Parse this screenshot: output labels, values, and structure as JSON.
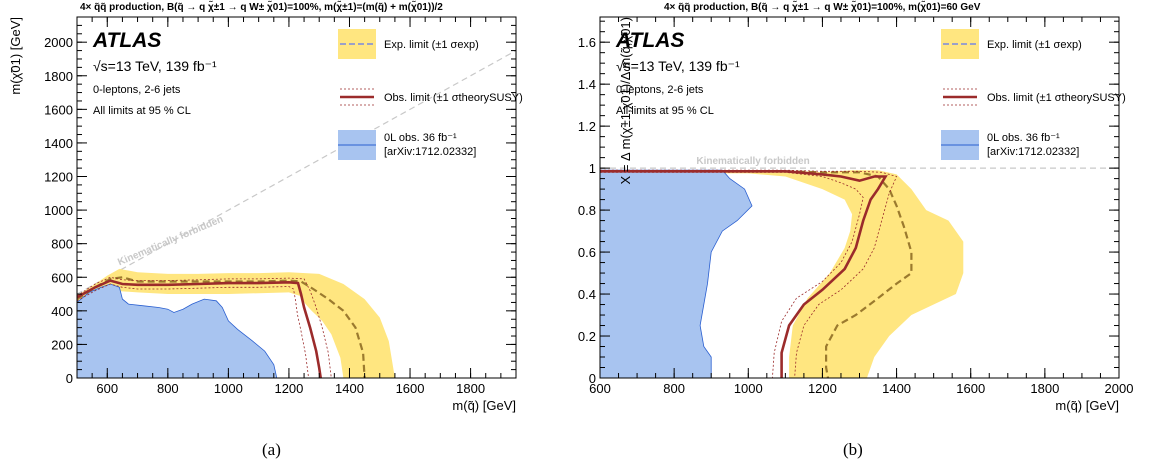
{
  "chart_data": [
    {
      "type": "area",
      "panel_label": "(a)",
      "title": "4× q̃q̃ production, B(q̃ → q χ̃±1 → q W± χ̃01)=100%, m(χ̃±1)=(m(q̃) + m(χ̃01))/2",
      "xlabel": "m(q̃) [GeV]",
      "ylabel": "m(χ̃01) [GeV]",
      "xlim": [
        500,
        1950
      ],
      "ylim": [
        0,
        2150
      ],
      "xticks": [
        "600",
        "800",
        "1000",
        "1200",
        "1400",
        "1600",
        "1800"
      ],
      "yticks": [
        "0",
        "200",
        "400",
        "600",
        "800",
        "1000",
        "1200",
        "1400",
        "1600",
        "1800",
        "2000"
      ],
      "atlas_label": "ATLAS",
      "info_lines": [
        "√s=13 TeV, 139 fb⁻¹",
        "0-leptons, 2-6 jets",
        "All limits at 95 % CL"
      ],
      "forbidden_label": "Kinematically forbidden",
      "legend": {
        "placement": "top-right",
        "exp": "Exp. limit (±1 σexp)",
        "obs": "Obs. limit (±1 σtheorySUSY)",
        "prev_line1": "0L obs. 36 fb⁻¹",
        "prev_line2": "[arXiv:1712.02332]"
      },
      "diagonal": [
        [
          500,
          500
        ],
        [
          1950,
          1950
        ]
      ],
      "prev_obs_region": [
        [
          500,
          0
        ],
        [
          500,
          450
        ],
        [
          540,
          510
        ],
        [
          580,
          540
        ],
        [
          610,
          560
        ],
        [
          640,
          540
        ],
        [
          650,
          470
        ],
        [
          670,
          440
        ],
        [
          720,
          430
        ],
        [
          770,
          420
        ],
        [
          800,
          410
        ],
        [
          820,
          390
        ],
        [
          850,
          410
        ],
        [
          880,
          440
        ],
        [
          920,
          470
        ],
        [
          960,
          460
        ],
        [
          980,
          420
        ],
        [
          1000,
          340
        ],
        [
          1030,
          290
        ],
        [
          1080,
          220
        ],
        [
          1120,
          160
        ],
        [
          1150,
          80
        ],
        [
          1160,
          0
        ]
      ],
      "exp_band": [
        [
          500,
          490
        ],
        [
          560,
          560
        ],
        [
          600,
          610
        ],
        [
          640,
          650
        ],
        [
          700,
          630
        ],
        [
          800,
          620
        ],
        [
          900,
          620
        ],
        [
          1000,
          625
        ],
        [
          1100,
          625
        ],
        [
          1200,
          630
        ],
        [
          1300,
          620
        ],
        [
          1380,
          560
        ],
        [
          1450,
          470
        ],
        [
          1500,
          360
        ],
        [
          1530,
          220
        ],
        [
          1550,
          0
        ],
        [
          1380,
          0
        ],
        [
          1370,
          120
        ],
        [
          1340,
          260
        ],
        [
          1310,
          340
        ],
        [
          1275,
          400
        ],
        [
          1255,
          440
        ],
        [
          1235,
          490
        ],
        [
          1200,
          510
        ],
        [
          1100,
          505
        ],
        [
          1000,
          500
        ],
        [
          900,
          500
        ],
        [
          800,
          500
        ],
        [
          700,
          510
        ],
        [
          620,
          520
        ],
        [
          560,
          500
        ],
        [
          500,
          450
        ]
      ],
      "exp_limit": [
        [
          500,
          470
        ],
        [
          560,
          540
        ],
        [
          610,
          590
        ],
        [
          650,
          600
        ],
        [
          700,
          575
        ],
        [
          800,
          575
        ],
        [
          900,
          575
        ],
        [
          1000,
          575
        ],
        [
          1100,
          575
        ],
        [
          1200,
          580
        ],
        [
          1240,
          575
        ],
        [
          1280,
          530
        ],
        [
          1330,
          470
        ],
        [
          1380,
          400
        ],
        [
          1420,
          300
        ],
        [
          1445,
          150
        ],
        [
          1450,
          0
        ]
      ],
      "obs_limit": [
        [
          500,
          480
        ],
        [
          560,
          540
        ],
        [
          610,
          580
        ],
        [
          650,
          560
        ],
        [
          700,
          555
        ],
        [
          800,
          555
        ],
        [
          900,
          560
        ],
        [
          1000,
          565
        ],
        [
          1100,
          565
        ],
        [
          1200,
          570
        ],
        [
          1230,
          565
        ],
        [
          1240,
          500
        ],
        [
          1250,
          420
        ],
        [
          1270,
          300
        ],
        [
          1290,
          160
        ],
        [
          1300,
          60
        ],
        [
          1305,
          0
        ]
      ],
      "obs_up": [
        [
          500,
          490
        ],
        [
          560,
          560
        ],
        [
          610,
          600
        ],
        [
          650,
          585
        ],
        [
          700,
          580
        ],
        [
          800,
          580
        ],
        [
          900,
          585
        ],
        [
          1000,
          590
        ],
        [
          1100,
          590
        ],
        [
          1200,
          595
        ],
        [
          1250,
          590
        ],
        [
          1270,
          520
        ],
        [
          1290,
          420
        ],
        [
          1310,
          300
        ],
        [
          1330,
          150
        ],
        [
          1340,
          0
        ]
      ],
      "obs_down": [
        [
          500,
          460
        ],
        [
          560,
          520
        ],
        [
          610,
          560
        ],
        [
          650,
          540
        ],
        [
          700,
          530
        ],
        [
          800,
          530
        ],
        [
          900,
          535
        ],
        [
          1000,
          540
        ],
        [
          1100,
          540
        ],
        [
          1200,
          545
        ],
        [
          1215,
          530
        ],
        [
          1222,
          460
        ],
        [
          1228,
          380
        ],
        [
          1240,
          280
        ],
        [
          1255,
          140
        ],
        [
          1265,
          0
        ]
      ]
    },
    {
      "type": "area",
      "panel_label": "(b)",
      "title": "4× q̃q̃ production, B(q̃ → q χ̃±1 → q W± χ̃01)=100%, m(χ̃01)=60 GeV",
      "xlabel": "m(q̃) [GeV]",
      "ylabel": "X = Δ m(χ̃±1,χ̃01)/Δ m(q̃,χ̃01)",
      "xlim": [
        600,
        2000
      ],
      "ylim": [
        0,
        1.72
      ],
      "xticks": [
        "600",
        "800",
        "1000",
        "1200",
        "1400",
        "1600",
        "1800",
        "2000"
      ],
      "yticks": [
        "0",
        "0.2",
        "0.4",
        "0.6",
        "0.8",
        "1",
        "1.2",
        "1.4",
        "1.6"
      ],
      "atlas_label": "ATLAS",
      "info_lines": [
        "√s=13 TeV, 139 fb⁻¹",
        "0-leptons, 2-6 jets",
        "All limits at 95 % CL"
      ],
      "forbidden_label": "Kinematically forbidden",
      "legend": {
        "placement": "top-right",
        "exp": "Exp. limit (±1 σexp)",
        "obs": "Obs. limit (±1 σtheorySUSY)",
        "prev_line1": "0L obs. 36 fb⁻¹",
        "prev_line2": "[arXiv:1712.02332]"
      },
      "forbidden_line_y": 1.0,
      "prev_obs_region": [
        [
          600,
          0
        ],
        [
          600,
          0.99
        ],
        [
          700,
          0.99
        ],
        [
          800,
          0.99
        ],
        [
          930,
          0.99
        ],
        [
          950,
          0.95
        ],
        [
          990,
          0.9
        ],
        [
          1010,
          0.82
        ],
        [
          970,
          0.75
        ],
        [
          930,
          0.7
        ],
        [
          900,
          0.6
        ],
        [
          890,
          0.45
        ],
        [
          880,
          0.35
        ],
        [
          870,
          0.25
        ],
        [
          880,
          0.15
        ],
        [
          900,
          0.1
        ],
        [
          900,
          0
        ]
      ],
      "exp_band": [
        [
          600,
          0.985
        ],
        [
          800,
          0.985
        ],
        [
          1000,
          0.985
        ],
        [
          1100,
          0.99
        ],
        [
          1200,
          0.98
        ],
        [
          1280,
          0.99
        ],
        [
          1350,
          0.99
        ],
        [
          1400,
          0.97
        ],
        [
          1440,
          0.9
        ],
        [
          1480,
          0.8
        ],
        [
          1540,
          0.75
        ],
        [
          1580,
          0.65
        ],
        [
          1580,
          0.5
        ],
        [
          1560,
          0.4
        ],
        [
          1500,
          0.35
        ],
        [
          1440,
          0.3
        ],
        [
          1380,
          0.2
        ],
        [
          1340,
          0.1
        ],
        [
          1320,
          0
        ],
        [
          1110,
          0
        ],
        [
          1110,
          0.1
        ],
        [
          1120,
          0.25
        ],
        [
          1160,
          0.38
        ],
        [
          1220,
          0.5
        ],
        [
          1260,
          0.62
        ],
        [
          1275,
          0.7
        ],
        [
          1280,
          0.78
        ],
        [
          1260,
          0.85
        ],
        [
          1200,
          0.9
        ],
        [
          1100,
          0.96
        ],
        [
          1000,
          0.975
        ],
        [
          800,
          0.975
        ],
        [
          600,
          0.975
        ]
      ],
      "exp_limit": [
        [
          600,
          0.985
        ],
        [
          900,
          0.985
        ],
        [
          1100,
          0.985
        ],
        [
          1200,
          0.98
        ],
        [
          1300,
          0.98
        ],
        [
          1350,
          0.96
        ],
        [
          1380,
          0.9
        ],
        [
          1400,
          0.82
        ],
        [
          1420,
          0.72
        ],
        [
          1440,
          0.6
        ],
        [
          1440,
          0.5
        ],
        [
          1400,
          0.45
        ],
        [
          1350,
          0.38
        ],
        [
          1290,
          0.3
        ],
        [
          1240,
          0.25
        ],
        [
          1210,
          0.15
        ],
        [
          1210,
          0.05
        ],
        [
          1215,
          0
        ]
      ],
      "obs_limit": [
        [
          600,
          0.985
        ],
        [
          900,
          0.985
        ],
        [
          1100,
          0.985
        ],
        [
          1200,
          0.97
        ],
        [
          1250,
          0.96
        ],
        [
          1300,
          0.94
        ],
        [
          1340,
          0.96
        ],
        [
          1370,
          0.96
        ],
        [
          1350,
          0.9
        ],
        [
          1330,
          0.85
        ],
        [
          1310,
          0.75
        ],
        [
          1290,
          0.62
        ],
        [
          1260,
          0.52
        ],
        [
          1200,
          0.42
        ],
        [
          1150,
          0.35
        ],
        [
          1110,
          0.25
        ],
        [
          1090,
          0.12
        ],
        [
          1090,
          0
        ]
      ],
      "obs_up": [
        [
          600,
          0.99
        ],
        [
          900,
          0.99
        ],
        [
          1100,
          0.99
        ],
        [
          1200,
          0.985
        ],
        [
          1300,
          0.985
        ],
        [
          1360,
          0.98
        ],
        [
          1400,
          0.96
        ],
        [
          1380,
          0.88
        ],
        [
          1360,
          0.75
        ],
        [
          1340,
          0.62
        ],
        [
          1310,
          0.52
        ],
        [
          1250,
          0.42
        ],
        [
          1190,
          0.35
        ],
        [
          1150,
          0.25
        ],
        [
          1130,
          0.12
        ],
        [
          1125,
          0
        ]
      ],
      "obs_down": [
        [
          600,
          0.98
        ],
        [
          900,
          0.98
        ],
        [
          1100,
          0.98
        ],
        [
          1200,
          0.96
        ],
        [
          1250,
          0.93
        ],
        [
          1290,
          0.9
        ],
        [
          1310,
          0.86
        ],
        [
          1300,
          0.78
        ],
        [
          1280,
          0.65
        ],
        [
          1250,
          0.55
        ],
        [
          1200,
          0.46
        ],
        [
          1130,
          0.38
        ],
        [
          1090,
          0.27
        ],
        [
          1070,
          0.12
        ],
        [
          1065,
          0
        ]
      ]
    }
  ],
  "colors": {
    "exp_band": "#ffe680",
    "exp_line": "#9b7a2e",
    "obs_line": "#9b2b2b",
    "prev_fill": "#a8c4f0",
    "prev_line": "#2a5fd0",
    "forbidden": "#c8c8c8",
    "legend_exp_dash": "#9aa0c8"
  }
}
